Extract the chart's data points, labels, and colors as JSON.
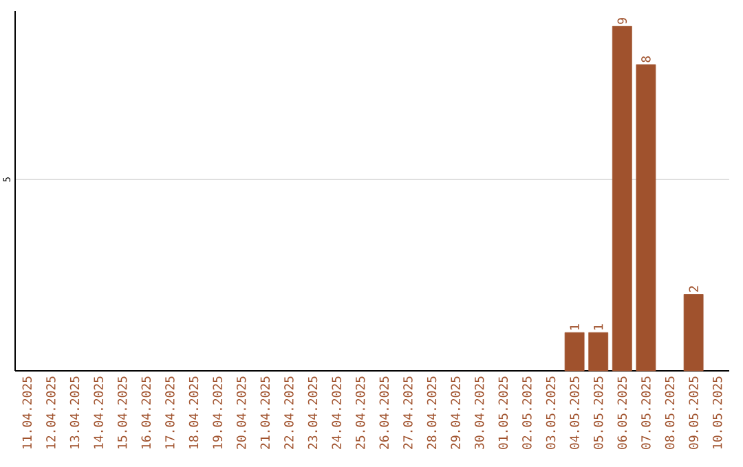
{
  "chart_data": {
    "type": "bar",
    "categories": [
      "11.04.2025",
      "12.04.2025",
      "13.04.2025",
      "14.04.2025",
      "15.04.2025",
      "16.04.2025",
      "17.04.2025",
      "18.04.2025",
      "19.04.2025",
      "20.04.2025",
      "21.04.2025",
      "22.04.2025",
      "23.04.2025",
      "24.04.2025",
      "25.04.2025",
      "26.04.2025",
      "27.04.2025",
      "28.04.2025",
      "29.04.2025",
      "30.04.2025",
      "01.05.2025",
      "02.05.2025",
      "03.05.2025",
      "04.05.2025",
      "05.05.2025",
      "06.05.2025",
      "07.05.2025",
      "08.05.2025",
      "09.05.2025",
      "10.05.2025"
    ],
    "values": [
      null,
      null,
      null,
      null,
      null,
      null,
      null,
      null,
      null,
      null,
      null,
      null,
      null,
      null,
      null,
      null,
      null,
      null,
      null,
      null,
      null,
      null,
      null,
      1,
      1,
      9,
      8,
      null,
      2,
      null
    ],
    "value_labels": [
      null,
      null,
      null,
      null,
      null,
      null,
      null,
      null,
      null,
      null,
      null,
      null,
      null,
      null,
      null,
      null,
      null,
      null,
      null,
      null,
      null,
      null,
      null,
      "1",
      "1",
      "9",
      "8",
      null,
      "2",
      null
    ],
    "color": "#a0522d",
    "ylim": [
      0,
      9.4
    ],
    "yticks": [
      5
    ],
    "grid": "y"
  }
}
